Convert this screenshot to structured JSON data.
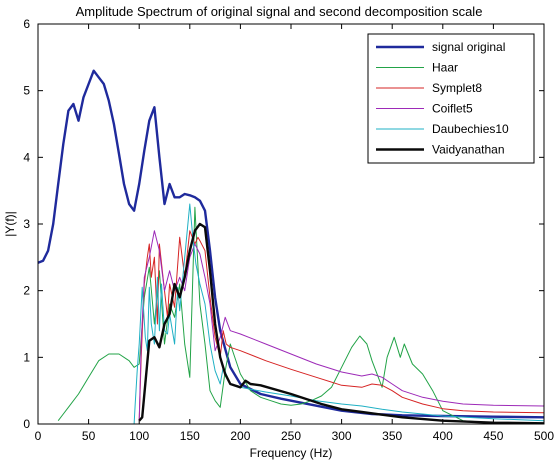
{
  "chart_data": {
    "type": "line",
    "title": "Amplitude Spectrum of original signal and second decomposition scale",
    "xlabel": "Frequency (Hz)",
    "ylabel": "|Y(f)|",
    "xlim": [
      0,
      500
    ],
    "ylim": [
      0,
      6
    ],
    "xticks": [
      0,
      50,
      100,
      150,
      200,
      250,
      300,
      350,
      400,
      450,
      500
    ],
    "yticks": [
      0,
      1,
      2,
      3,
      4,
      5,
      6
    ],
    "grid": false,
    "legend_position": "top-right",
    "series": [
      {
        "name": "signal original",
        "color": "#1f2a9c",
        "x": [
          0,
          5,
          10,
          15,
          20,
          25,
          30,
          35,
          40,
          45,
          50,
          55,
          60,
          65,
          70,
          75,
          80,
          85,
          90,
          95,
          100,
          105,
          110,
          115,
          120,
          125,
          130,
          135,
          140,
          145,
          150,
          155,
          160,
          165,
          170,
          175,
          180,
          190,
          200,
          220,
          240,
          260,
          280,
          300,
          330,
          360,
          400,
          450,
          500
        ],
        "y": [
          2.42,
          2.45,
          2.6,
          3.0,
          3.6,
          4.2,
          4.7,
          4.8,
          4.55,
          4.9,
          5.1,
          5.3,
          5.2,
          5.1,
          4.85,
          4.5,
          4.05,
          3.6,
          3.3,
          3.2,
          3.6,
          4.1,
          4.55,
          4.75,
          4.0,
          3.3,
          3.6,
          3.4,
          3.4,
          3.45,
          3.43,
          3.4,
          3.35,
          3.2,
          2.6,
          1.9,
          1.4,
          0.85,
          0.6,
          0.45,
          0.38,
          0.32,
          0.26,
          0.2,
          0.15,
          0.13,
          0.12,
          0.11,
          0.1
        ]
      },
      {
        "name": "Haar",
        "color": "#22a347",
        "x": [
          20,
          25,
          30,
          40,
          50,
          60,
          70,
          80,
          90,
          95,
          100,
          105,
          110,
          115,
          120,
          125,
          130,
          135,
          140,
          145,
          150,
          155,
          160,
          165,
          170,
          175,
          180,
          185,
          190,
          200,
          210,
          220,
          230,
          240,
          250,
          260,
          270,
          280,
          290,
          300,
          310,
          318,
          325,
          330,
          340,
          345,
          352,
          358,
          362,
          370,
          380,
          390,
          400,
          420,
          450,
          500
        ],
        "y": [
          0.05,
          0.15,
          0.25,
          0.45,
          0.7,
          0.95,
          1.05,
          1.05,
          0.95,
          0.85,
          0.9,
          1.9,
          2.35,
          1.5,
          2.3,
          1.2,
          1.8,
          1.6,
          2.1,
          1.2,
          0.7,
          3.25,
          1.8,
          1.2,
          0.5,
          0.35,
          0.25,
          0.8,
          1.2,
          0.75,
          0.5,
          0.4,
          0.35,
          0.3,
          0.28,
          0.3,
          0.35,
          0.42,
          0.55,
          0.85,
          1.15,
          1.32,
          1.2,
          0.95,
          0.55,
          1.0,
          1.3,
          1.0,
          1.2,
          0.9,
          0.75,
          0.5,
          0.2,
          0.05,
          0.02,
          0.01
        ]
      },
      {
        "name": "Symplet8",
        "color": "#d62424",
        "x": [
          100,
          102,
          105,
          108,
          110,
          112,
          115,
          118,
          120,
          125,
          128,
          130,
          135,
          140,
          145,
          150,
          155,
          158,
          160,
          165,
          170,
          175,
          180,
          183,
          186,
          190,
          200,
          225,
          250,
          275,
          300,
          320,
          330,
          340,
          350,
          360,
          380,
          400,
          420,
          450,
          500
        ],
        "y": [
          0.05,
          1.0,
          2.1,
          2.5,
          2.7,
          2.2,
          2.5,
          1.5,
          2.7,
          2.0,
          1.6,
          2.1,
          1.75,
          2.8,
          2.2,
          2.9,
          2.7,
          2.8,
          2.75,
          2.6,
          1.9,
          1.3,
          1.0,
          1.4,
          1.2,
          1.15,
          1.1,
          0.95,
          0.82,
          0.7,
          0.58,
          0.55,
          0.6,
          0.58,
          0.5,
          0.4,
          0.3,
          0.23,
          0.2,
          0.18,
          0.17
        ]
      },
      {
        "name": "Coiflet5",
        "color": "#9d2ab8",
        "x": [
          100,
          102,
          105,
          110,
          115,
          120,
          125,
          130,
          135,
          140,
          145,
          150,
          155,
          160,
          165,
          170,
          175,
          180,
          185,
          190,
          200,
          225,
          250,
          275,
          300,
          320,
          330,
          340,
          350,
          360,
          380,
          400,
          420,
          450,
          500
        ],
        "y": [
          0.05,
          1.2,
          2.2,
          2.5,
          2.9,
          2.6,
          2.0,
          2.3,
          2.0,
          2.2,
          2.0,
          2.5,
          2.7,
          2.55,
          2.2,
          1.8,
          1.1,
          1.3,
          1.6,
          1.4,
          1.35,
          1.2,
          1.05,
          0.9,
          0.78,
          0.72,
          0.75,
          0.7,
          0.6,
          0.5,
          0.4,
          0.34,
          0.3,
          0.28,
          0.27
        ]
      },
      {
        "name": "Daubechies10",
        "color": "#1fb0c4",
        "x": [
          95,
          96,
          98,
          100,
          103,
          106,
          108,
          110,
          112,
          115,
          118,
          120,
          122,
          125,
          128,
          130,
          135,
          138,
          140,
          145,
          150,
          153,
          156,
          160,
          165,
          170,
          175,
          180,
          183,
          186,
          190,
          200,
          225,
          250,
          275,
          300,
          320,
          340,
          360,
          380,
          400,
          450,
          500
        ],
        "y": [
          0.0,
          0.3,
          0.8,
          1.2,
          2.05,
          1.3,
          1.1,
          2.05,
          1.5,
          1.2,
          2.2,
          1.4,
          2.1,
          1.4,
          1.35,
          1.65,
          1.2,
          2.05,
          1.7,
          2.5,
          3.3,
          2.8,
          2.4,
          2.1,
          1.8,
          1.2,
          0.8,
          0.6,
          0.85,
          0.75,
          0.6,
          0.55,
          0.48,
          0.42,
          0.35,
          0.3,
          0.27,
          0.22,
          0.18,
          0.15,
          0.12,
          0.08,
          0.05
        ]
      },
      {
        "name": "Vaidyanathan",
        "color": "#0a0a0a",
        "x": [
          100,
          103,
          106,
          110,
          115,
          120,
          125,
          130,
          135,
          140,
          145,
          150,
          155,
          160,
          165,
          170,
          175,
          180,
          185,
          190,
          200,
          205,
          210,
          220,
          250,
          280,
          300,
          320,
          340,
          360,
          400,
          450,
          500
        ],
        "y": [
          0.05,
          0.1,
          0.6,
          1.25,
          1.3,
          1.15,
          1.5,
          1.65,
          2.1,
          1.9,
          2.2,
          2.6,
          2.9,
          3.0,
          2.95,
          2.3,
          1.5,
          1.0,
          0.75,
          0.6,
          0.55,
          0.65,
          0.6,
          0.58,
          0.45,
          0.3,
          0.22,
          0.18,
          0.14,
          0.1,
          0.05,
          0.02,
          0.01
        ]
      }
    ]
  }
}
